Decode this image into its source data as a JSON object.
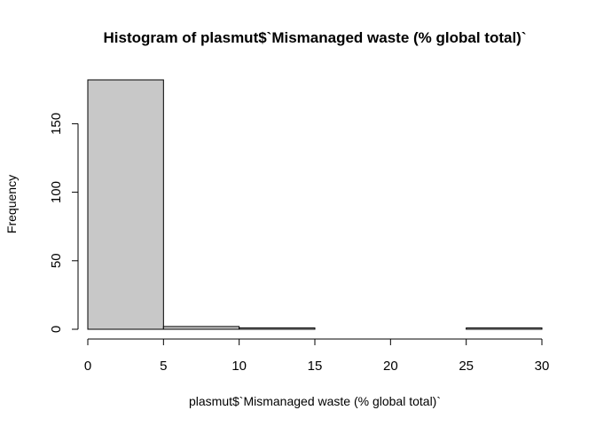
{
  "chart_data": {
    "type": "bar",
    "title": "Histogram of plasmut$`Mismanaged waste (% global total)`",
    "xlabel": "plasmut$`Mismanaged waste (% global total)`",
    "ylabel": "Frequency",
    "bins": [
      {
        "start": 0,
        "end": 5,
        "count": 182
      },
      {
        "start": 5,
        "end": 10,
        "count": 2
      },
      {
        "start": 10,
        "end": 15,
        "count": 1
      },
      {
        "start": 15,
        "end": 20,
        "count": 0
      },
      {
        "start": 20,
        "end": 25,
        "count": 0
      },
      {
        "start": 25,
        "end": 30,
        "count": 1
      }
    ],
    "xlim": [
      0,
      30
    ],
    "ylim": [
      0,
      182
    ],
    "xticks": [
      0,
      5,
      10,
      15,
      20,
      25,
      30
    ],
    "yticks": [
      0,
      50,
      100,
      150
    ],
    "grid": false
  }
}
